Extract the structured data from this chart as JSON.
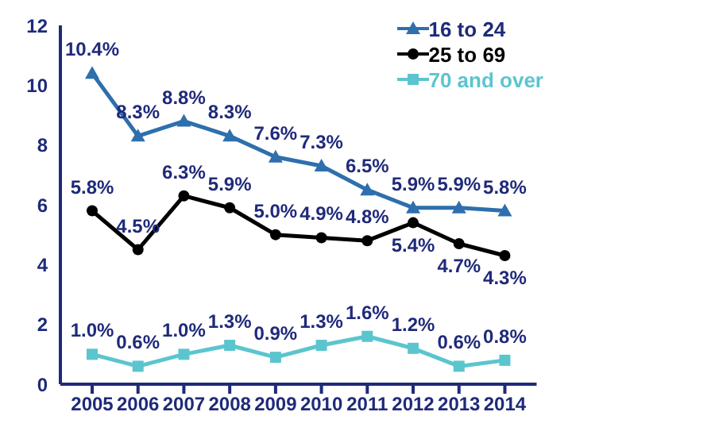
{
  "chart_data": {
    "type": "line",
    "categories": [
      "2005",
      "2006",
      "2007",
      "2008",
      "2009",
      "2010",
      "2011",
      "2012",
      "2013",
      "2014"
    ],
    "series": [
      {
        "name": "16 to 24",
        "color": "#2e6fad",
        "marker": "triangle",
        "values": [
          10.4,
          8.3,
          8.8,
          8.3,
          7.6,
          7.3,
          6.5,
          5.9,
          5.9,
          5.8
        ],
        "value_labels": [
          "10.4%",
          "8.3%",
          "8.8%",
          "8.3%",
          "7.6%",
          "7.3%",
          "6.5%",
          "5.9%",
          "5.9%",
          "5.8%"
        ]
      },
      {
        "name": "25 to 69",
        "color": "#000000",
        "marker": "circle",
        "values": [
          5.8,
          4.5,
          6.3,
          5.9,
          5.0,
          4.9,
          4.8,
          5.4,
          4.7,
          4.3
        ],
        "value_labels": [
          "5.8%",
          "4.5%",
          "6.3%",
          "5.9%",
          "5.0%",
          "4.9%",
          "4.8%",
          "5.4%",
          "4.7%",
          "4.3%"
        ]
      },
      {
        "name": "70 and over",
        "color": "#5bc5cf",
        "marker": "square",
        "values": [
          1.0,
          0.6,
          1.0,
          1.3,
          0.9,
          1.3,
          1.6,
          1.2,
          0.6,
          0.8
        ],
        "value_labels": [
          "1.0%",
          "0.6%",
          "1.0%",
          "1.3%",
          "0.9%",
          "1.3%",
          "1.6%",
          "1.2%",
          "0.6%",
          "0.8%"
        ]
      }
    ],
    "ylim": [
      0,
      12
    ],
    "yticks": [
      0,
      2,
      4,
      6,
      8,
      10,
      12
    ],
    "grid": false,
    "legend": "top right"
  }
}
